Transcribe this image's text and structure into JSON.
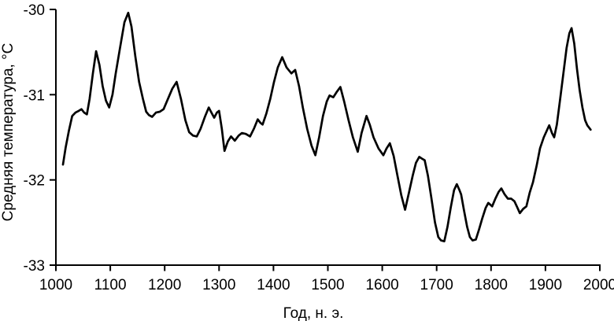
{
  "page": {
    "background": "#ffffff",
    "foreground": "#000000"
  },
  "chart_data": {
    "type": "line",
    "title": "",
    "xlabel": "Год, н. э.",
    "ylabel": "Средняя температура, °C",
    "xlim": [
      1000,
      2000
    ],
    "ylim": [
      -33,
      -30
    ],
    "x_ticks": [
      1000,
      1100,
      1200,
      1300,
      1400,
      1500,
      1600,
      1700,
      1800,
      1900,
      2000
    ],
    "y_ticks": [
      -30,
      -31,
      -32,
      -33
    ],
    "grid": false,
    "legend_position": "none",
    "line_color": "#000000",
    "line_width": 2.7,
    "series": [
      {
        "name": "Средняя температура",
        "points": [
          [
            1013,
            -31.82
          ],
          [
            1018,
            -31.62
          ],
          [
            1024,
            -31.42
          ],
          [
            1030,
            -31.25
          ],
          [
            1036,
            -31.21
          ],
          [
            1042,
            -31.19
          ],
          [
            1047,
            -31.17
          ],
          [
            1052,
            -31.21
          ],
          [
            1057,
            -31.23
          ],
          [
            1062,
            -31.05
          ],
          [
            1068,
            -30.75
          ],
          [
            1074,
            -30.49
          ],
          [
            1080,
            -30.65
          ],
          [
            1086,
            -30.9
          ],
          [
            1092,
            -31.07
          ],
          [
            1098,
            -31.15
          ],
          [
            1104,
            -31.0
          ],
          [
            1110,
            -30.75
          ],
          [
            1118,
            -30.45
          ],
          [
            1126,
            -30.15
          ],
          [
            1133,
            -30.04
          ],
          [
            1139,
            -30.2
          ],
          [
            1146,
            -30.55
          ],
          [
            1153,
            -30.85
          ],
          [
            1160,
            -31.05
          ],
          [
            1166,
            -31.2
          ],
          [
            1171,
            -31.24
          ],
          [
            1177,
            -31.26
          ],
          [
            1184,
            -31.21
          ],
          [
            1191,
            -31.2
          ],
          [
            1198,
            -31.17
          ],
          [
            1206,
            -31.05
          ],
          [
            1214,
            -30.93
          ],
          [
            1222,
            -30.85
          ],
          [
            1230,
            -31.05
          ],
          [
            1238,
            -31.3
          ],
          [
            1245,
            -31.44
          ],
          [
            1252,
            -31.48
          ],
          [
            1259,
            -31.49
          ],
          [
            1266,
            -31.4
          ],
          [
            1274,
            -31.26
          ],
          [
            1281,
            -31.15
          ],
          [
            1286,
            -31.21
          ],
          [
            1291,
            -31.27
          ],
          [
            1296,
            -31.21
          ],
          [
            1300,
            -31.19
          ],
          [
            1305,
            -31.4
          ],
          [
            1310,
            -31.66
          ],
          [
            1316,
            -31.55
          ],
          [
            1322,
            -31.49
          ],
          [
            1329,
            -31.54
          ],
          [
            1336,
            -31.48
          ],
          [
            1342,
            -31.45
          ],
          [
            1349,
            -31.46
          ],
          [
            1357,
            -31.49
          ],
          [
            1364,
            -31.4
          ],
          [
            1371,
            -31.29
          ],
          [
            1376,
            -31.33
          ],
          [
            1380,
            -31.35
          ],
          [
            1387,
            -31.22
          ],
          [
            1394,
            -31.05
          ],
          [
            1401,
            -30.85
          ],
          [
            1408,
            -30.68
          ],
          [
            1416,
            -30.56
          ],
          [
            1424,
            -30.68
          ],
          [
            1433,
            -30.75
          ],
          [
            1440,
            -30.71
          ],
          [
            1447,
            -30.9
          ],
          [
            1454,
            -31.15
          ],
          [
            1462,
            -31.4
          ],
          [
            1470,
            -31.6
          ],
          [
            1477,
            -31.71
          ],
          [
            1484,
            -31.5
          ],
          [
            1491,
            -31.25
          ],
          [
            1498,
            -31.08
          ],
          [
            1503,
            -31.01
          ],
          [
            1510,
            -31.03
          ],
          [
            1516,
            -30.97
          ],
          [
            1523,
            -30.91
          ],
          [
            1530,
            -31.08
          ],
          [
            1538,
            -31.3
          ],
          [
            1546,
            -31.5
          ],
          [
            1555,
            -31.67
          ],
          [
            1562,
            -31.45
          ],
          [
            1571,
            -31.25
          ],
          [
            1577,
            -31.35
          ],
          [
            1584,
            -31.5
          ],
          [
            1593,
            -31.63
          ],
          [
            1602,
            -31.71
          ],
          [
            1608,
            -31.63
          ],
          [
            1614,
            -31.57
          ],
          [
            1621,
            -31.72
          ],
          [
            1628,
            -31.95
          ],
          [
            1635,
            -32.18
          ],
          [
            1642,
            -32.35
          ],
          [
            1649,
            -32.15
          ],
          [
            1656,
            -31.95
          ],
          [
            1662,
            -31.8
          ],
          [
            1668,
            -31.73
          ],
          [
            1673,
            -31.75
          ],
          [
            1678,
            -31.77
          ],
          [
            1684,
            -31.95
          ],
          [
            1690,
            -32.2
          ],
          [
            1697,
            -32.5
          ],
          [
            1703,
            -32.67
          ],
          [
            1708,
            -32.71
          ],
          [
            1714,
            -32.72
          ],
          [
            1720,
            -32.55
          ],
          [
            1726,
            -32.32
          ],
          [
            1732,
            -32.12
          ],
          [
            1737,
            -32.05
          ],
          [
            1742,
            -32.12
          ],
          [
            1745,
            -32.17
          ],
          [
            1750,
            -32.35
          ],
          [
            1756,
            -32.55
          ],
          [
            1761,
            -32.67
          ],
          [
            1766,
            -32.71
          ],
          [
            1772,
            -32.7
          ],
          [
            1778,
            -32.58
          ],
          [
            1784,
            -32.45
          ],
          [
            1790,
            -32.33
          ],
          [
            1795,
            -32.27
          ],
          [
            1802,
            -32.31
          ],
          [
            1808,
            -32.22
          ],
          [
            1814,
            -32.14
          ],
          [
            1819,
            -32.1
          ],
          [
            1825,
            -32.17
          ],
          [
            1831,
            -32.22
          ],
          [
            1837,
            -32.22
          ],
          [
            1843,
            -32.25
          ],
          [
            1848,
            -32.32
          ],
          [
            1853,
            -32.39
          ],
          [
            1859,
            -32.34
          ],
          [
            1865,
            -32.31
          ],
          [
            1871,
            -32.15
          ],
          [
            1877,
            -32.03
          ],
          [
            1884,
            -31.83
          ],
          [
            1890,
            -31.63
          ],
          [
            1897,
            -31.5
          ],
          [
            1904,
            -31.4
          ],
          [
            1907,
            -31.36
          ],
          [
            1912,
            -31.45
          ],
          [
            1916,
            -31.5
          ],
          [
            1921,
            -31.35
          ],
          [
            1927,
            -31.05
          ],
          [
            1933,
            -30.75
          ],
          [
            1939,
            -30.45
          ],
          [
            1944,
            -30.28
          ],
          [
            1948,
            -30.22
          ],
          [
            1953,
            -30.4
          ],
          [
            1958,
            -30.7
          ],
          [
            1963,
            -30.95
          ],
          [
            1968,
            -31.15
          ],
          [
            1973,
            -31.3
          ],
          [
            1977,
            -31.36
          ],
          [
            1983,
            -31.41
          ]
        ]
      }
    ]
  }
}
